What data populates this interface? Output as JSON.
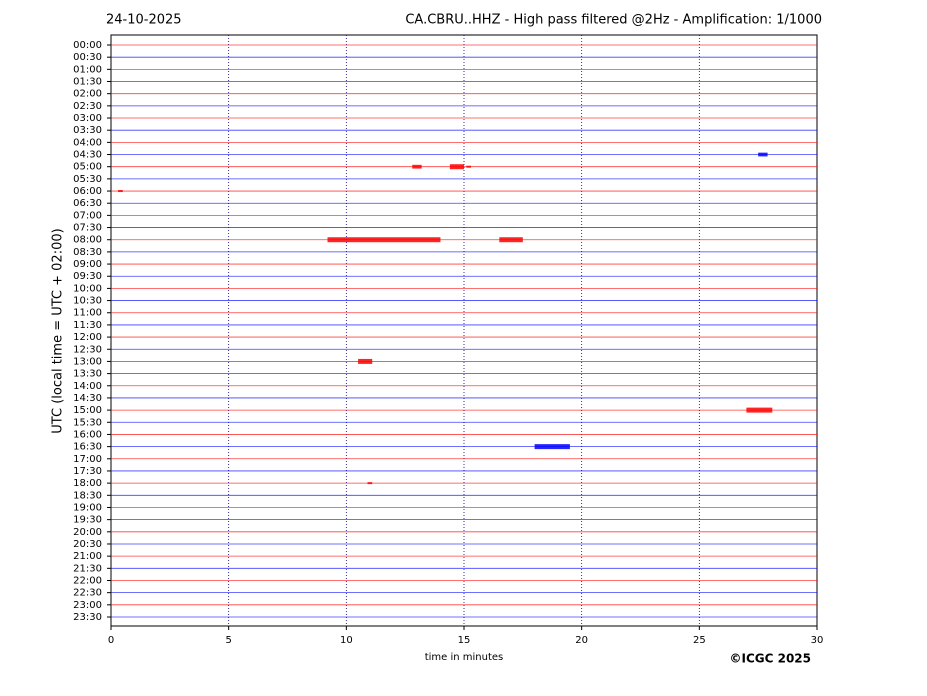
{
  "chart_data": {
    "type": "helicorder",
    "date": "24-10-2025",
    "title": "CA.CBRU..HHZ - High pass filtered @2Hz - Amplification: 1/1000",
    "x_label": "time in minutes",
    "y_label": "UTC (local time = UTC + 02:00)",
    "copyright": "©ICGC 2025",
    "categories": [
      "00:00",
      "00:30",
      "01:00",
      "01:30",
      "02:00",
      "02:30",
      "03:00",
      "03:30",
      "04:00",
      "04:30",
      "05:00",
      "05:30",
      "06:00",
      "06:30",
      "07:00",
      "07:30",
      "08:00",
      "08:30",
      "09:00",
      "09:30",
      "10:00",
      "10:30",
      "11:00",
      "11:30",
      "12:00",
      "12:30",
      "13:00",
      "13:30",
      "14:00",
      "14:30",
      "15:00",
      "15:30",
      "16:00",
      "16:30",
      "17:00",
      "17:30",
      "18:00",
      "18:30",
      "19:00",
      "19:30",
      "20:00",
      "20:30",
      "21:00",
      "21:30",
      "22:00",
      "22:30",
      "23:00",
      "23:30"
    ],
    "colors": [
      "#ff0000",
      "#0000ff"
    ],
    "xlim": [
      0,
      30
    ],
    "xticks": [
      0,
      5,
      10,
      15,
      20,
      25,
      30
    ],
    "grid": true,
    "events": [
      {
        "time": "04:30",
        "start": 27.5,
        "end": 27.9
      },
      {
        "time": "05:00",
        "start": 12.8,
        "end": 13.2
      },
      {
        "time": "05:00",
        "start": 14.4,
        "end": 15.0
      },
      {
        "time": "05:00",
        "start": 15.1,
        "end": 15.3
      },
      {
        "time": "06:00",
        "start": 0.3,
        "end": 0.5
      },
      {
        "time": "08:00",
        "start": 9.2,
        "end": 14.0
      },
      {
        "time": "08:00",
        "start": 16.5,
        "end": 17.5
      },
      {
        "time": "13:00",
        "start": 10.5,
        "end": 11.1
      },
      {
        "time": "15:00",
        "start": 27.0,
        "end": 28.1
      },
      {
        "time": "16:30",
        "start": 18.0,
        "end": 19.5
      },
      {
        "time": "18:00",
        "start": 10.9,
        "end": 11.1
      }
    ]
  }
}
